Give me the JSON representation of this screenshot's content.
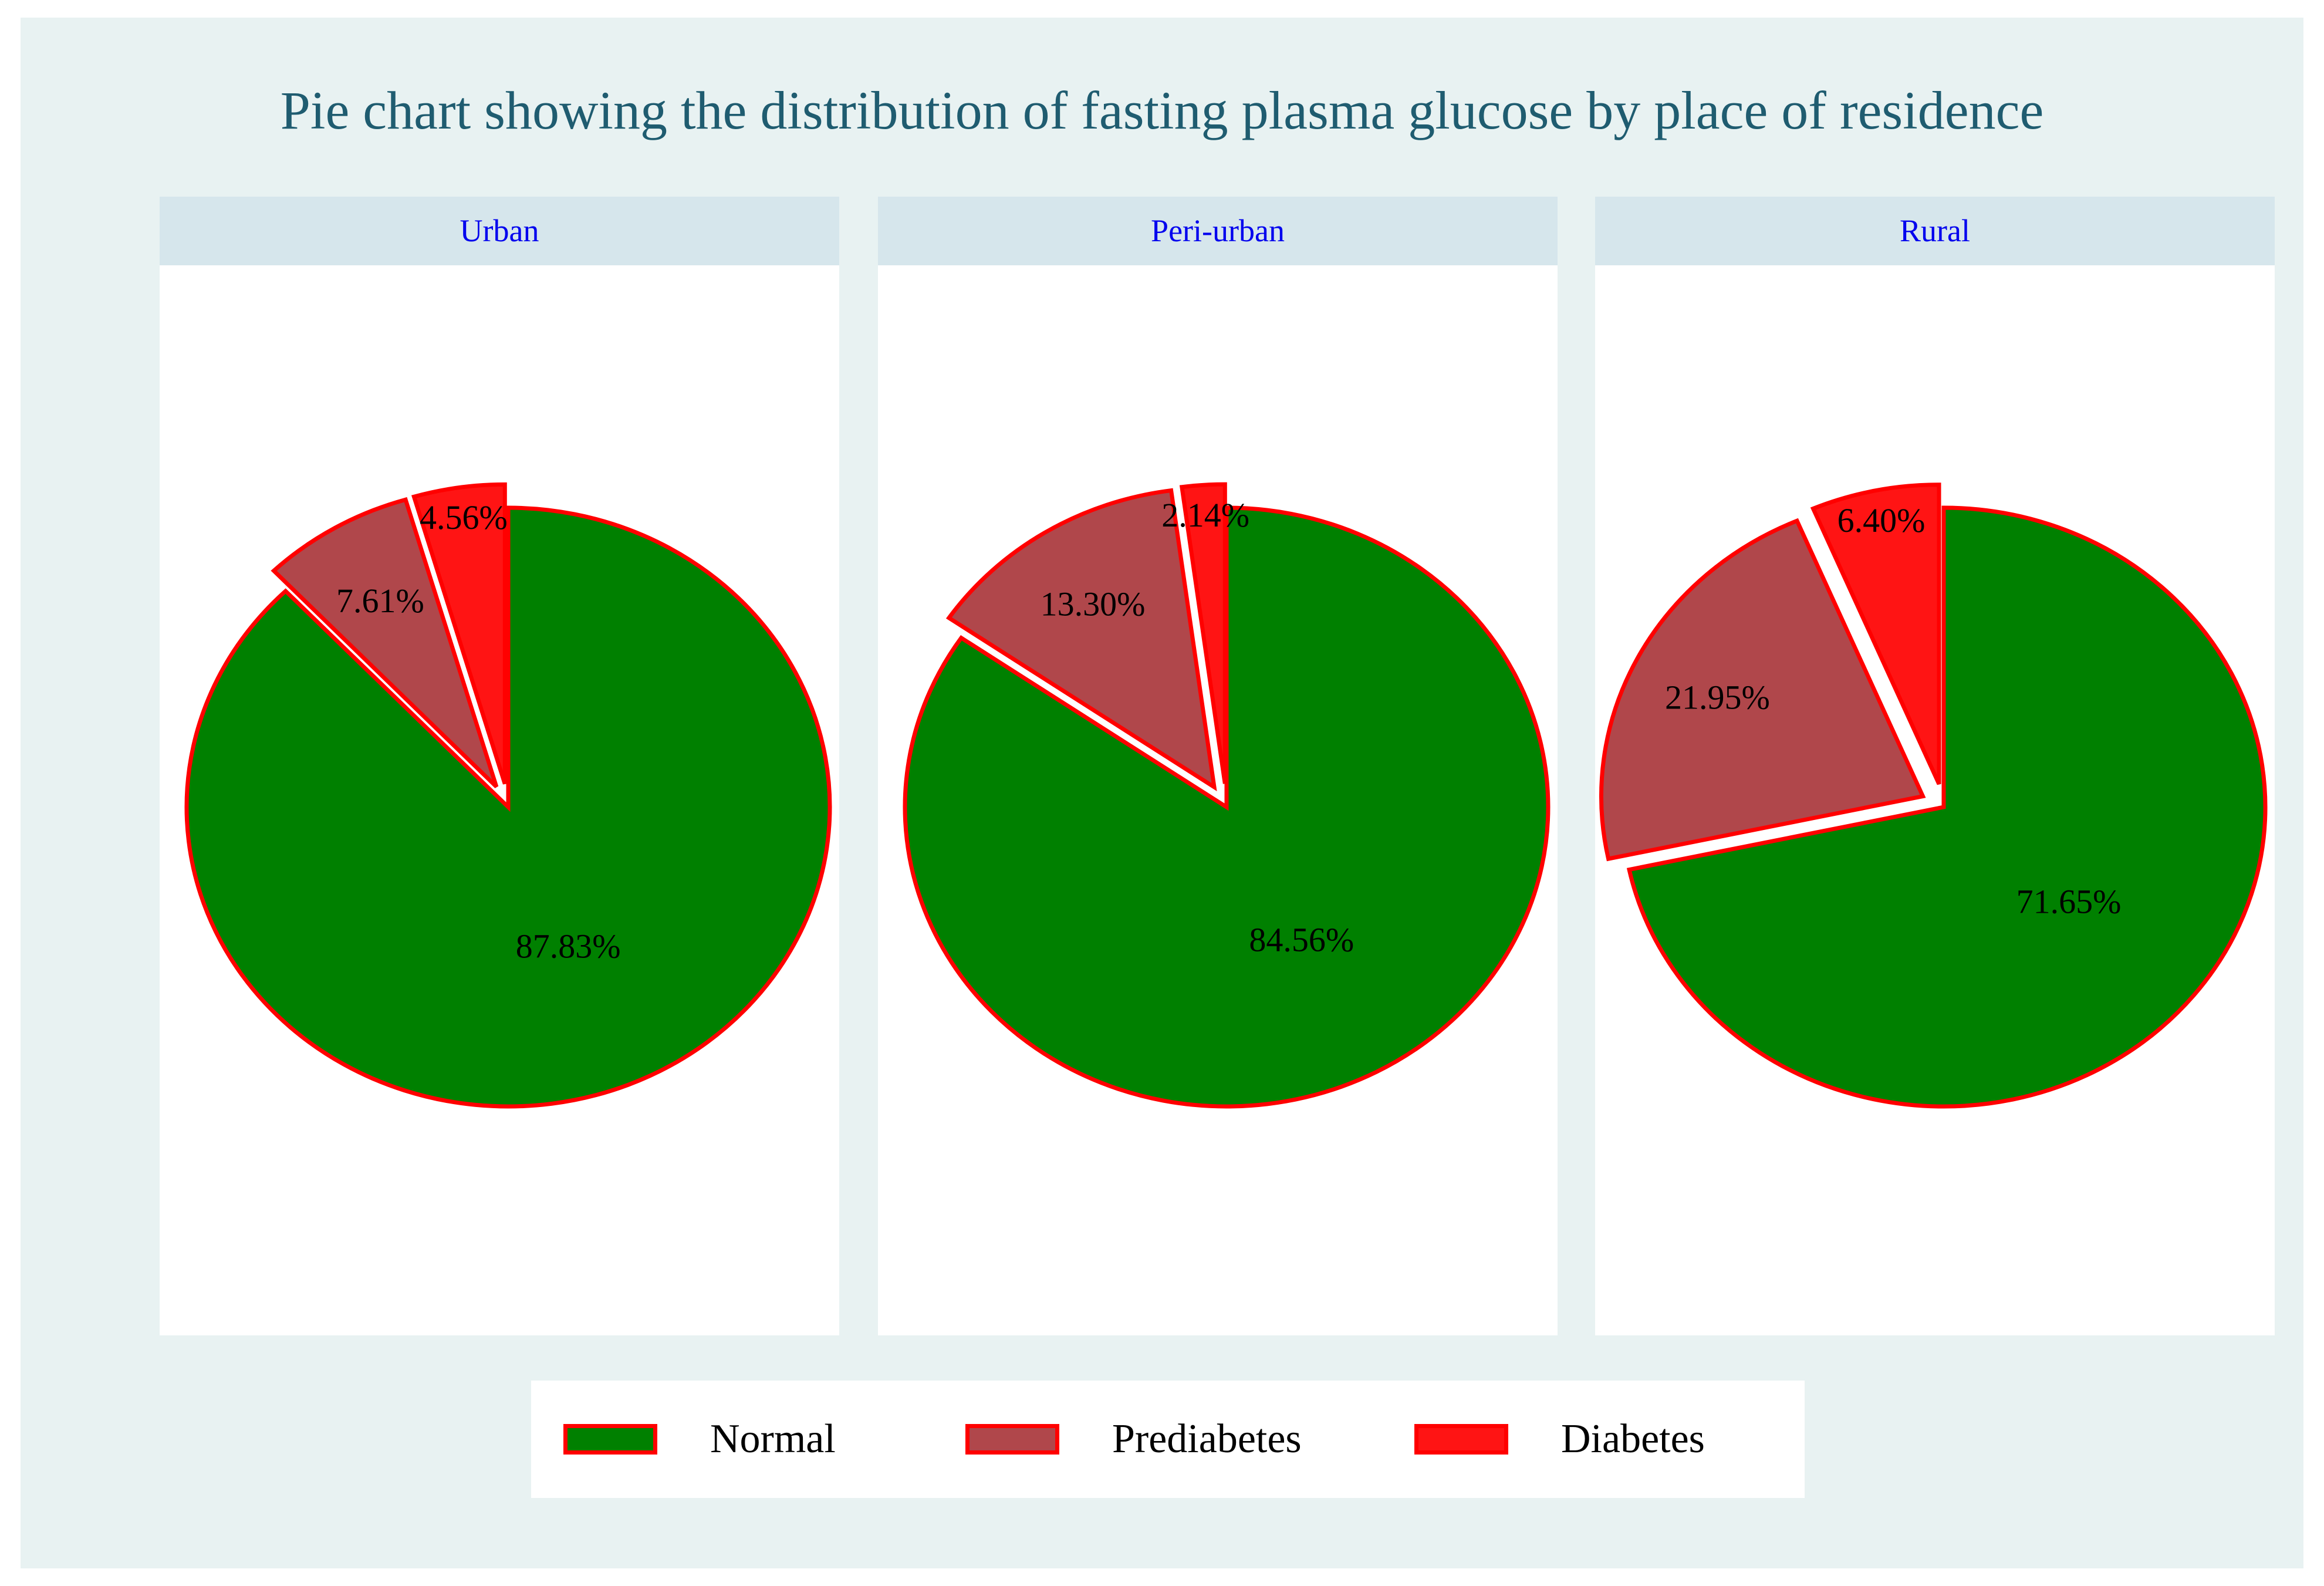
{
  "chart_data": {
    "type": "pie",
    "title": "Pie chart showing the distribution of fasting plasma glucose by place of residence",
    "categories": [
      "Normal",
      "Prediabetes",
      "Diabetes"
    ],
    "colors": [
      "#008000",
      "#b0474b",
      "#ff1414"
    ],
    "edge_color": "#ff0000",
    "exploded": [
      "Prediabetes",
      "Diabetes"
    ],
    "legend": {
      "position": "bottom",
      "items": [
        {
          "label": "Normal",
          "color": "#008000"
        },
        {
          "label": "Prediabetes",
          "color": "#b0474b"
        },
        {
          "label": "Diabetes",
          "color": "#ff1414"
        }
      ]
    },
    "panels": [
      {
        "name": "Urban",
        "values": [
          87.83,
          7.61,
          4.56
        ],
        "labels": [
          "87.83%",
          "7.61%",
          "4.56%"
        ]
      },
      {
        "name": "Peri-urban",
        "values": [
          84.56,
          13.3,
          2.14
        ],
        "labels": [
          "84.56%",
          "13.30%",
          "2.14%"
        ]
      },
      {
        "name": "Rural",
        "values": [
          71.65,
          21.95,
          6.4
        ],
        "labels": [
          "71.65%",
          "21.95%",
          "6.40%"
        ]
      }
    ]
  }
}
